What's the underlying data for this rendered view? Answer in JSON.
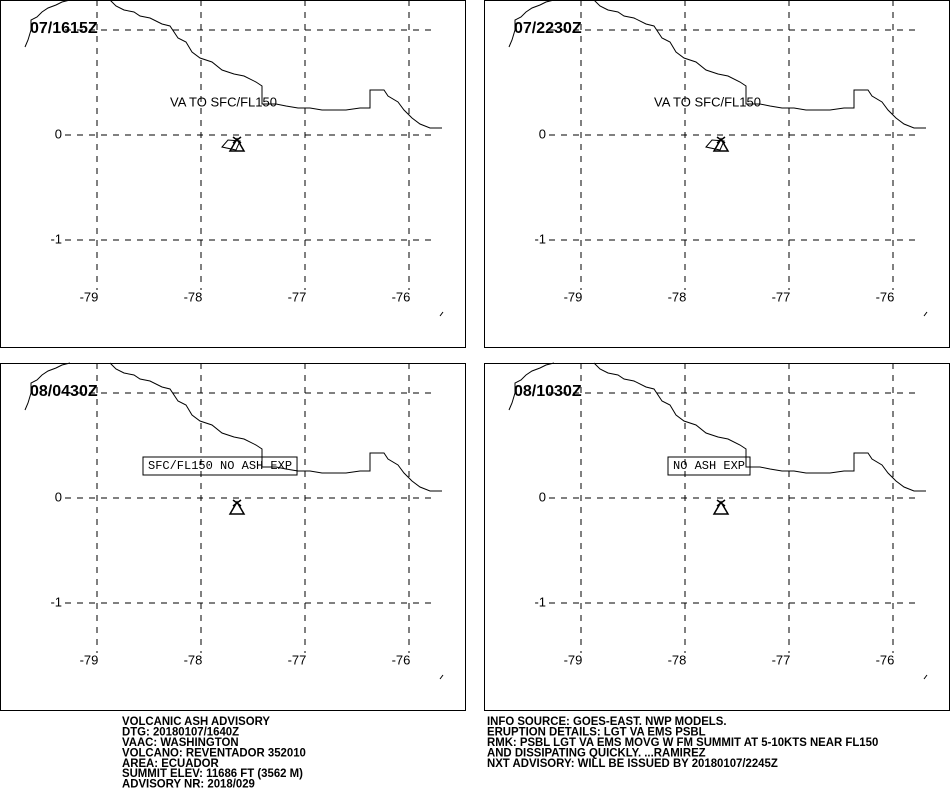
{
  "panels": [
    {
      "time": "07/1615Z",
      "label": "VA TO SFC/FL150"
    },
    {
      "time": "07/2230Z",
      "label": "VA TO SFC/FL150"
    },
    {
      "time": "08/0430Z",
      "label": "SFC/FL150 NO ASH EXP"
    },
    {
      "time": "08/1030Z",
      "label": "NO ASH EXP"
    }
  ],
  "map": {
    "lon_ticks": [
      -79,
      -78,
      -77,
      -76
    ],
    "lat_ticks": [
      0,
      -1
    ]
  },
  "advisory": {
    "left": [
      "VOLCANIC ASH ADVISORY",
      "DTG: 20180107/1640Z",
      "VAAC: WASHINGTON",
      "VOLCANO: REVENTADOR 352010",
      "AREA: ECUADOR",
      "SUMMIT ELEV: 11686 FT (3562 M)",
      "ADVISORY NR: 2018/029"
    ],
    "right": [
      "INFO SOURCE: GOES-EAST. NWP MODELS.",
      "ERUPTION DETAILS: LGT VA EMS PSBL",
      "RMK: PSBL LGT VA EMS MOVG W FM SUMMIT AT 5-10KTS NEAR FL150",
      "AND DISSIPATING QUICKLY. ...RAMIREZ",
      "NXT ADVISORY: WILL BE ISSUED BY 20180107/2245Z"
    ]
  }
}
